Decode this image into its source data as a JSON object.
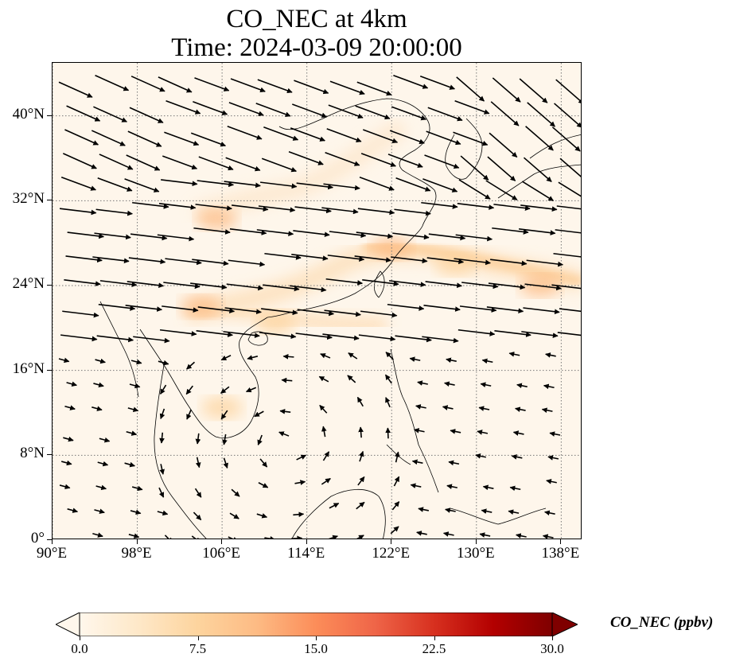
{
  "figure": {
    "title_line1": "CO_NEC at 4km",
    "title_line2": "Time: 2024-03-09 20:00:00"
  },
  "map": {
    "projection": "PlateCarree",
    "lon_range": [
      90,
      140
    ],
    "lat_range": [
      0,
      45
    ],
    "gridlines": "dotted",
    "lat_ticks": [
      {
        "value": 40,
        "label": "40°N"
      },
      {
        "value": 32,
        "label": "32°N"
      },
      {
        "value": 24,
        "label": "24°N"
      },
      {
        "value": 16,
        "label": "16°N"
      },
      {
        "value": 8,
        "label": "8°N"
      },
      {
        "value": 0,
        "label": "0°"
      }
    ],
    "lon_ticks": [
      {
        "value": 90,
        "label": "90°E"
      },
      {
        "value": 98,
        "label": "98°E"
      },
      {
        "value": 106,
        "label": "106°E"
      },
      {
        "value": 114,
        "label": "114°E"
      },
      {
        "value": 122,
        "label": "122°E"
      },
      {
        "value": 130,
        "label": "130°E"
      },
      {
        "value": 138,
        "label": "138°E"
      }
    ],
    "field_variable": "CO_NEC",
    "plume": {
      "description_values_ppbv": "background ~0–2, plume band ~5–8",
      "points": [
        {
          "lon": 105.5,
          "lat": 30.3,
          "value": 6.5
        },
        {
          "lon": 104.0,
          "lat": 22.0,
          "value": 6.0
        },
        {
          "lon": 111.0,
          "lat": 20.5,
          "value": 5.5
        },
        {
          "lon": 122.0,
          "lat": 27.5,
          "value": 6.5
        },
        {
          "lon": 128.0,
          "lat": 26.0,
          "value": 5.5
        },
        {
          "lon": 136.0,
          "lat": 24.0,
          "value": 6.0
        },
        {
          "lon": 106.0,
          "lat": 12.5,
          "value": 4.0
        }
      ]
    },
    "wind_field_direction": "westerly/west-northwesterly north of ~18°N; weak cyclonic circulation over Indochina/South China Sea"
  },
  "colorbar": {
    "colormap": "OrRd",
    "min": 0.0,
    "max": 30.0,
    "extend": "both",
    "ticks": [
      "0.0",
      "7.5",
      "15.0",
      "22.5",
      "30.0"
    ],
    "label": "CO_NEC (ppbv)",
    "colors": [
      "#fff7ec",
      "#fee8c8",
      "#fdd49e",
      "#fdbb84",
      "#fc8d59",
      "#ef6548",
      "#d7301f",
      "#b30000",
      "#7f0000"
    ]
  }
}
